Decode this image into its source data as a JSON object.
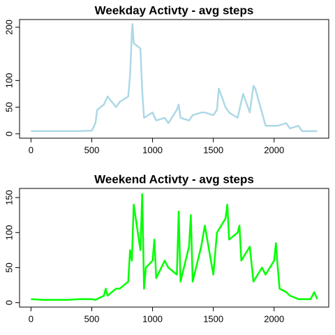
{
  "chart_data": [
    {
      "type": "line",
      "title": "Weekday Activty - avg steps",
      "color": "#add8e6",
      "x": [
        0,
        100,
        200,
        300,
        400,
        500,
        530,
        545,
        600,
        630,
        700,
        730,
        800,
        815,
        830,
        835,
        845,
        900,
        915,
        930,
        1000,
        1030,
        1100,
        1130,
        1200,
        1215,
        1230,
        1300,
        1330,
        1400,
        1430,
        1500,
        1530,
        1545,
        1600,
        1630,
        1700,
        1730,
        1745,
        1800,
        1830,
        1845,
        1900,
        1930,
        2000,
        2030,
        2100,
        2130,
        2200,
        2230,
        2300,
        2355
      ],
      "values": [
        5,
        5,
        5,
        5,
        5,
        6,
        20,
        45,
        55,
        70,
        50,
        60,
        70,
        110,
        190,
        206,
        170,
        160,
        80,
        30,
        40,
        25,
        30,
        20,
        45,
        55,
        30,
        25,
        35,
        40,
        40,
        35,
        45,
        85,
        50,
        40,
        30,
        60,
        75,
        40,
        90,
        85,
        40,
        15,
        15,
        15,
        20,
        10,
        15,
        5,
        5,
        5
      ],
      "xlim": [
        -94.2,
        2449.2
      ],
      "ylim": [
        -8.2,
        214.4
      ],
      "xticks": [
        0,
        500,
        1000,
        1500,
        2000
      ],
      "yticks": [
        0,
        50,
        100,
        200
      ]
    },
    {
      "type": "line",
      "title": "Weekend Activty - avg steps",
      "color": "#00ff00",
      "x": [
        0,
        100,
        200,
        300,
        400,
        500,
        530,
        600,
        615,
        630,
        700,
        730,
        800,
        815,
        830,
        845,
        900,
        915,
        930,
        945,
        1000,
        1015,
        1030,
        1100,
        1130,
        1200,
        1215,
        1230,
        1300,
        1315,
        1330,
        1400,
        1430,
        1500,
        1530,
        1600,
        1615,
        1630,
        1700,
        1715,
        1730,
        1800,
        1830,
        1900,
        1930,
        2000,
        2015,
        2030,
        2045,
        2100,
        2130,
        2200,
        2300,
        2330,
        2355
      ],
      "values": [
        5,
        4,
        4,
        4,
        5,
        5,
        4,
        10,
        20,
        10,
        20,
        20,
        30,
        75,
        60,
        140,
        75,
        155,
        20,
        50,
        60,
        90,
        35,
        60,
        50,
        40,
        130,
        30,
        80,
        125,
        30,
        80,
        110,
        40,
        100,
        120,
        140,
        90,
        100,
        110,
        60,
        80,
        30,
        50,
        40,
        60,
        85,
        50,
        20,
        15,
        10,
        5,
        5,
        15,
        5
      ],
      "xlim": [
        -94.2,
        2449.2
      ],
      "ylim": [
        -6.3,
        163
      ],
      "xticks": [
        0,
        500,
        1000,
        1500,
        2000
      ],
      "yticks": [
        0,
        50,
        100,
        150
      ]
    }
  ]
}
